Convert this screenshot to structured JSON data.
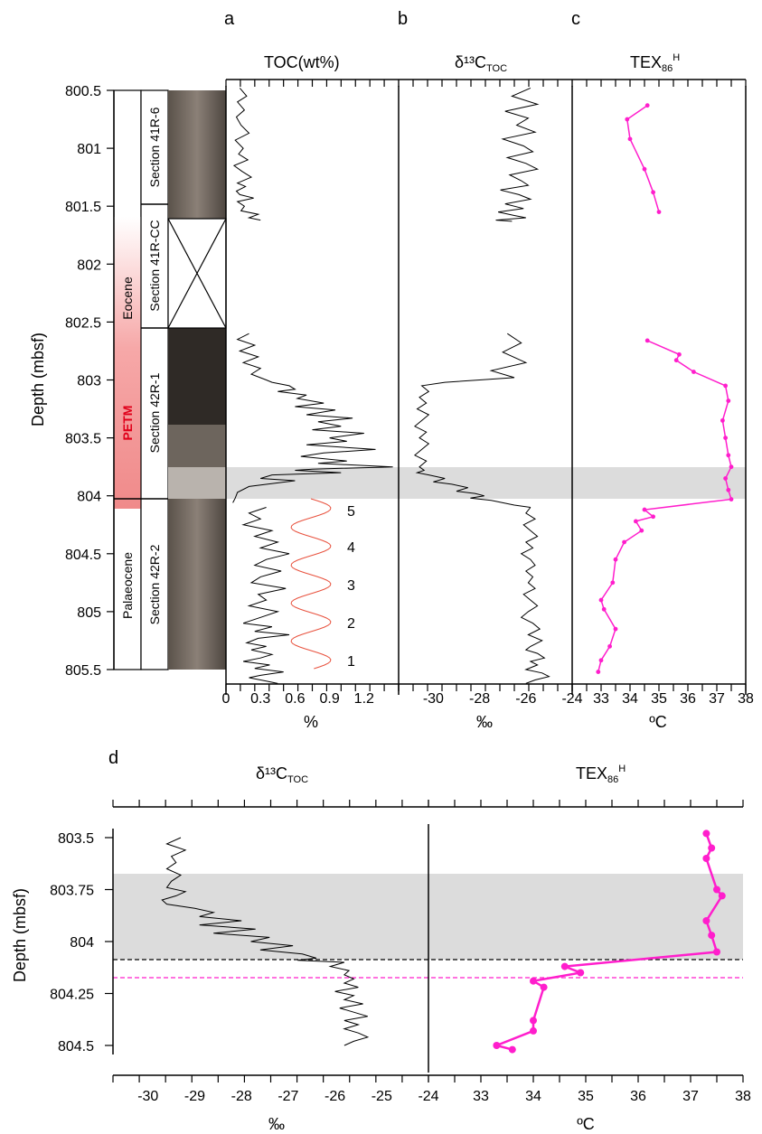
{
  "panel_labels": {
    "a": "a",
    "b": "b",
    "c": "c",
    "d": "d"
  },
  "top_titles": {
    "toc": "TOC(wt%)",
    "d13c": "δ¹³C",
    "d13c_sub": "TOC",
    "tex": "TEX",
    "tex_sub": "86",
    "tex_sup": "H"
  },
  "units": {
    "toc": "%",
    "d13c": "‰",
    "tex": "ºC"
  },
  "depth_label": "Depth (mbsf)",
  "depth_label_d": "Depth (mbsf)",
  "strat": {
    "eocene": "Eocene",
    "petm": "PETM",
    "palaeocene": "Palaeocene",
    "sections": [
      "Section 41R-6",
      "Section 41R-CC",
      "Section 42R-1",
      "Section 42R-2"
    ]
  },
  "cycle_labels": [
    "5",
    "4",
    "3",
    "2",
    "1"
  ],
  "colors": {
    "line": "#000000",
    "tex": "#ff1ecc",
    "petm_fill": "#f08a8a",
    "shade": "#dcdcdc",
    "cycle": "#e8503c",
    "dash_black": "#000000",
    "dash_magenta": "#ff1ecc",
    "petm_text": "#e0001a"
  },
  "chart_data": [
    {
      "type": "line",
      "panel": "a",
      "ylim": [
        800.5,
        805.5
      ],
      "yticks": [
        "800.5",
        "801",
        "801.5",
        "802",
        "802.5",
        "803",
        "803.5",
        "804",
        "804.5",
        "805",
        "805.5"
      ],
      "xlim": [
        0,
        1.5
      ],
      "xticks": [
        "0",
        "0.3",
        "0.6",
        "0.9",
        "1.2"
      ],
      "xlabel": "%",
      "title": "TOC(wt%)",
      "series": [
        {
          "x": [
            0.12,
            0.18,
            0.1,
            0.16,
            0.09,
            0.13,
            0.2,
            0.08,
            0.15,
            0.11,
            0.19,
            0.07,
            0.14,
            0.22,
            0.1,
            0.17,
            0.09,
            0.12,
            0.24,
            0.1,
            0.16,
            0.13,
            0.28,
            0.2,
            0.3
          ],
          "y": [
            800.48,
            800.55,
            800.6,
            800.67,
            800.73,
            800.8,
            800.87,
            800.93,
            801.0,
            801.05,
            801.1,
            801.15,
            801.2,
            801.25,
            801.3,
            801.33,
            801.37,
            801.4,
            801.43,
            801.46,
            801.5,
            801.54,
            801.57,
            801.6,
            801.62
          ]
        },
        {
          "x": [
            0.2,
            0.1,
            0.25,
            0.12,
            0.28,
            0.15,
            0.3,
            0.22,
            0.35,
            0.4,
            0.55,
            0.6,
            0.45,
            0.7,
            0.62,
            0.85,
            0.6,
            0.95,
            0.7,
            1.1,
            0.8,
            1.0,
            0.75,
            1.2,
            0.9,
            1.05,
            0.7,
            1.3,
            0.85,
            0.65,
            1.05,
            0.8,
            1.45,
            0.75,
            0.6,
            1.0,
            0.4,
            0.3,
            0.6,
            0.2,
            0.1,
            0.08,
            0.06
          ],
          "y": [
            802.6,
            802.65,
            802.7,
            802.75,
            802.8,
            802.85,
            802.9,
            802.95,
            803.0,
            803.02,
            803.05,
            803.08,
            803.1,
            803.13,
            803.16,
            803.2,
            803.23,
            803.26,
            803.3,
            803.33,
            803.36,
            803.4,
            803.43,
            803.46,
            803.5,
            803.53,
            803.56,
            803.6,
            803.63,
            803.66,
            803.7,
            803.72,
            803.75,
            803.77,
            803.78,
            803.8,
            803.82,
            803.85,
            803.87,
            803.92,
            803.97,
            804.02,
            804.06
          ]
        },
        {
          "x": [
            0.35,
            0.2,
            0.3,
            0.15,
            0.4,
            0.25,
            0.45,
            0.3,
            0.55,
            0.35,
            0.25,
            0.48,
            0.3,
            0.22,
            0.52,
            0.28,
            0.35,
            0.2,
            0.45,
            0.3,
            0.15,
            0.4,
            0.25,
            0.55,
            0.28,
            0.18,
            0.35,
            0.22,
            0.4,
            0.3,
            0.15,
            0.38,
            0.25,
            0.5,
            0.3,
            0.2,
            0.35,
            0.45
          ],
          "y": [
            804.1,
            804.15,
            804.2,
            804.25,
            804.3,
            804.35,
            804.4,
            804.45,
            804.5,
            804.55,
            804.6,
            804.65,
            804.7,
            804.75,
            804.8,
            804.85,
            804.9,
            804.95,
            805.0,
            805.05,
            805.1,
            805.13,
            805.17,
            805.2,
            805.23,
            805.27,
            805.3,
            805.33,
            805.37,
            805.4,
            805.43,
            805.46,
            805.49,
            805.52,
            805.55,
            805.57,
            805.6,
            805.62
          ]
        }
      ]
    },
    {
      "type": "line",
      "panel": "b",
      "ylim": [
        800.5,
        805.5
      ],
      "xlim": [
        -31.5,
        -24
      ],
      "xticks": [
        "-30",
        "-28",
        "-26",
        "-24"
      ],
      "xlabel": "‰",
      "title": "δ13C TOC",
      "series": [
        {
          "x": [
            -25.8,
            -26.6,
            -25.5,
            -26.9,
            -25.9,
            -26.4,
            -25.6,
            -27.0,
            -26.1,
            -25.7,
            -26.8,
            -26.0,
            -25.5,
            -26.7,
            -26.2,
            -25.9,
            -27.1,
            -26.3,
            -25.8,
            -26.9,
            -26.1,
            -27.2,
            -26.5,
            -26.0,
            -27.3,
            -26.6
          ],
          "y": [
            800.48,
            800.55,
            800.62,
            800.68,
            800.74,
            800.8,
            800.86,
            800.92,
            800.98,
            801.03,
            801.08,
            801.13,
            801.18,
            801.23,
            801.28,
            801.32,
            801.36,
            801.4,
            801.44,
            801.48,
            801.52,
            801.55,
            801.58,
            801.6,
            801.62,
            801.63
          ]
        },
        {
          "x": [
            -26.8,
            -26.2,
            -27.0,
            -26.0,
            -27.5,
            -26.5,
            -28.0,
            -29.5,
            -30.5,
            -30.2,
            -30.6,
            -30.3,
            -30.7,
            -30.2,
            -30.5,
            -30.8,
            -30.3,
            -30.6,
            -30.2,
            -30.5,
            -30.8,
            -30.3,
            -30.6,
            -30.4,
            -30.7,
            -30.2,
            -29.5,
            -30.0,
            -29.2,
            -28.5,
            -29.0,
            -28.2,
            -27.8,
            -28.4,
            -27.5,
            -27.0,
            -26.5,
            -25.8
          ],
          "y": [
            802.6,
            802.68,
            802.76,
            802.85,
            802.92,
            802.98,
            803.0,
            803.02,
            803.05,
            803.1,
            803.15,
            803.2,
            803.25,
            803.3,
            803.35,
            803.4,
            803.45,
            803.5,
            803.55,
            803.6,
            803.65,
            803.7,
            803.75,
            803.78,
            803.8,
            803.82,
            803.85,
            803.88,
            803.9,
            803.93,
            803.96,
            803.98,
            804.0,
            804.02,
            804.04,
            804.06,
            804.08,
            804.1
          ]
        },
        {
          "x": [
            -25.8,
            -26.0,
            -25.6,
            -26.1,
            -25.8,
            -25.5,
            -26.0,
            -25.7,
            -26.2,
            -25.8,
            -25.6,
            -26.0,
            -25.7,
            -25.9,
            -25.6,
            -26.1,
            -25.8,
            -25.5,
            -25.9,
            -26.2,
            -25.7,
            -25.4,
            -25.9,
            -25.3,
            -25.8,
            -26.0,
            -25.5,
            -25.2,
            -25.8,
            -25.5,
            -26.0,
            -25.3,
            -25.0,
            -25.6,
            -26.0
          ],
          "y": [
            804.1,
            804.15,
            804.2,
            804.25,
            804.3,
            804.35,
            804.4,
            804.45,
            804.5,
            804.55,
            804.6,
            804.65,
            804.7,
            804.75,
            804.8,
            804.85,
            804.9,
            804.95,
            805.0,
            805.05,
            805.1,
            805.15,
            805.2,
            805.25,
            805.3,
            805.33,
            805.36,
            805.4,
            805.43,
            805.46,
            805.5,
            805.53,
            805.56,
            805.59,
            805.62
          ]
        }
      ]
    },
    {
      "type": "scatter",
      "panel": "c",
      "ylim": [
        800.5,
        805.5
      ],
      "xlim": [
        32,
        38
      ],
      "xticks": [
        "33",
        "34",
        "35",
        "36",
        "37",
        "38"
      ],
      "xlabel": "ºC",
      "title": "TEX86 H",
      "series": [
        {
          "x": [
            34.6,
            33.9,
            34.0,
            34.5,
            34.8,
            35.0
          ],
          "y": [
            800.63,
            800.75,
            800.92,
            801.18,
            801.38,
            801.55
          ]
        },
        {
          "x": [
            34.6,
            35.7,
            35.6,
            36.2,
            37.3,
            37.4,
            37.2,
            37.3,
            37.4,
            37.5,
            37.3,
            37.4,
            37.5,
            34.5,
            34.8,
            34.2,
            34.4,
            33.8,
            33.5,
            33.4,
            33.0,
            33.1,
            33.5,
            33.3,
            33.0,
            32.9
          ],
          "y": [
            802.66,
            802.78,
            802.83,
            802.93,
            803.05,
            803.18,
            803.35,
            803.5,
            803.65,
            803.75,
            803.85,
            803.95,
            804.03,
            804.12,
            804.18,
            804.22,
            804.3,
            804.4,
            804.55,
            804.75,
            804.9,
            804.98,
            805.15,
            805.3,
            805.42,
            805.52
          ]
        }
      ]
    },
    {
      "type": "line",
      "panel": "d-left",
      "ylim": [
        803.5,
        804.5
      ],
      "yticks": [
        "803.5",
        "803.75",
        "804",
        "804.25",
        "804.5"
      ],
      "xlim": [
        -30.75,
        -24
      ],
      "xticks": [
        "-30",
        "-29",
        "-28",
        "-27",
        "-26",
        "-25",
        "-24"
      ],
      "xlabel": "‰",
      "title": "δ13C TOC",
      "series": [
        {
          "x": [
            -29.3,
            -29.6,
            -29.2,
            -29.5,
            -29.4,
            -29.6,
            -29.3,
            -29.5,
            -29.6,
            -29.2,
            -29.4,
            -29.7,
            -29.6,
            -29.0,
            -28.6,
            -28.9,
            -28.0,
            -28.9,
            -27.7,
            -28.6,
            -27.4,
            -27.8,
            -26.9,
            -27.6,
            -26.7,
            -26.4,
            -26.8,
            -25.8,
            -26.1,
            -25.7,
            -25.8,
            -25.6,
            -25.8,
            -25.5,
            -26.0,
            -25.6,
            -25.8,
            -25.4,
            -25.9,
            -25.6,
            -25.3,
            -25.8,
            -25.5,
            -25.8,
            -25.5,
            -25.3,
            -25.6,
            -25.8
          ],
          "y": [
            803.5,
            803.53,
            803.56,
            803.59,
            803.62,
            803.65,
            803.68,
            803.71,
            803.74,
            803.76,
            803.78,
            803.8,
            803.82,
            803.84,
            803.86,
            803.88,
            803.9,
            803.92,
            803.94,
            803.96,
            803.98,
            804.0,
            804.02,
            804.04,
            804.06,
            804.08,
            804.09,
            804.1,
            804.12,
            804.14,
            804.16,
            804.18,
            804.2,
            804.22,
            804.24,
            804.26,
            804.28,
            804.3,
            804.32,
            804.34,
            804.36,
            804.38,
            804.4,
            804.42,
            804.44,
            804.46,
            804.48,
            804.5
          ]
        }
      ]
    },
    {
      "type": "scatter",
      "panel": "d-right",
      "ylim": [
        803.5,
        804.5
      ],
      "xlim": [
        32,
        38
      ],
      "xticks": [
        "33",
        "34",
        "35",
        "36",
        "37",
        "38"
      ],
      "xlabel": "ºC",
      "title": "TEX86 H",
      "series": [
        {
          "x": [
            37.3,
            37.4,
            37.3,
            37.5,
            37.6,
            37.3,
            37.4,
            37.5,
            34.6,
            34.9,
            34.0,
            34.2,
            34.0,
            34.0,
            33.3,
            33.6
          ],
          "y": [
            803.48,
            803.55,
            803.6,
            803.75,
            803.78,
            803.9,
            803.97,
            804.05,
            804.12,
            804.15,
            804.19,
            804.22,
            804.38,
            804.43,
            804.5,
            804.52
          ]
        }
      ]
    }
  ]
}
